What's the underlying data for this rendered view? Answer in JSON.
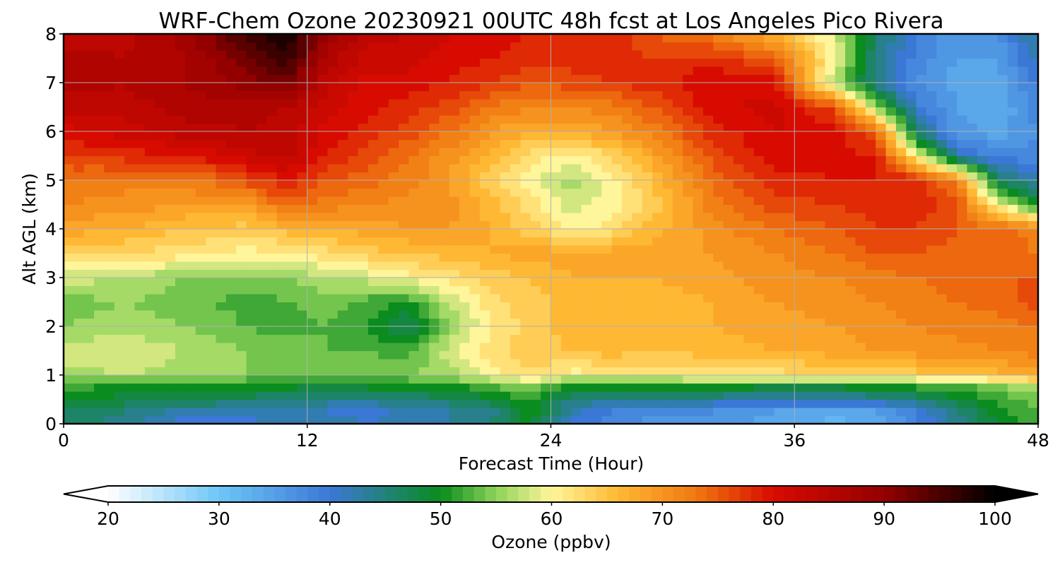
{
  "chart_data": {
    "type": "heatmap",
    "title": "WRF-Chem Ozone  20230921 00UTC 48h fcst at Los Angeles Pico Rivera",
    "xlabel": "Forecast Time (Hour)",
    "ylabel": "Alt AGL (km)",
    "xlim": [
      0,
      48
    ],
    "ylim": [
      0,
      8
    ],
    "xticks": [
      "0",
      "12",
      "24",
      "36",
      "48"
    ],
    "yticks": [
      "0",
      "1",
      "2",
      "3",
      "4",
      "5",
      "6",
      "7",
      "8"
    ],
    "grid": true,
    "x_hours": [
      0,
      3,
      6,
      9,
      11,
      13,
      15,
      17,
      19,
      21,
      23,
      25,
      27,
      29,
      32,
      35,
      38,
      40,
      42,
      44,
      46,
      48
    ],
    "y_km": [
      0,
      0.25,
      0.5,
      0.8,
      1.0,
      1.5,
      2.0,
      2.5,
      3.0,
      3.5,
      4.0,
      4.5,
      5.0,
      5.5,
      6.0,
      6.5,
      7.0,
      7.5,
      8.0
    ],
    "ozone_ppbv": [
      [
        46,
        44,
        40,
        40,
        42,
        43,
        41,
        42,
        43,
        45,
        50,
        41,
        38,
        36,
        36,
        34,
        32,
        33,
        38,
        44,
        49,
        52
      ],
      [
        47,
        45,
        42,
        42,
        42,
        41,
        40,
        42,
        43,
        44,
        50,
        42,
        39,
        38,
        37,
        35,
        34,
        35,
        39,
        45,
        50,
        53
      ],
      [
        49,
        48,
        47,
        46,
        45,
        44,
        44,
        45,
        46,
        48,
        51,
        45,
        44,
        44,
        43,
        42,
        42,
        43,
        45,
        48,
        51,
        54
      ],
      [
        52,
        51,
        51,
        50,
        50,
        49,
        50,
        50,
        51,
        53,
        56,
        50,
        50,
        50,
        51,
        50,
        50,
        51,
        52,
        53,
        55,
        57
      ],
      [
        56,
        57,
        56,
        55,
        54,
        54,
        54,
        55,
        56,
        60,
        63,
        60,
        61,
        61,
        62,
        62,
        63,
        63,
        64,
        65,
        66,
        68
      ],
      [
        58,
        59,
        57,
        55,
        54,
        53,
        53,
        52,
        58,
        62,
        64,
        65,
        66,
        65,
        66,
        67,
        68,
        69,
        70,
        70,
        71,
        72
      ],
      [
        55,
        56,
        55,
        53,
        52,
        53,
        51,
        46,
        55,
        61,
        64,
        66,
        67,
        66,
        67,
        68,
        69,
        70,
        71,
        72,
        72,
        73
      ],
      [
        54,
        55,
        54,
        52,
        53,
        54,
        52,
        51,
        57,
        62,
        64,
        66,
        67,
        66,
        67,
        69,
        70,
        71,
        72,
        73,
        74,
        76
      ],
      [
        58,
        57,
        55,
        54,
        55,
        57,
        58,
        60,
        62,
        64,
        65,
        67,
        67,
        67,
        68,
        70,
        71,
        72,
        73,
        74,
        75,
        75
      ],
      [
        64,
        63,
        62,
        60,
        61,
        62,
        64,
        65,
        66,
        67,
        68,
        68,
        68,
        68,
        69,
        71,
        73,
        75,
        75,
        74,
        74,
        73
      ],
      [
        68,
        67,
        65,
        64,
        66,
        67,
        68,
        69,
        69,
        67,
        64,
        60,
        62,
        66,
        70,
        73,
        75,
        77,
        77,
        75,
        74,
        72
      ],
      [
        71,
        70,
        69,
        69,
        74,
        72,
        71,
        70,
        70,
        66,
        62,
        58,
        60,
        64,
        72,
        76,
        77,
        78,
        78,
        76,
        60,
        50
      ],
      [
        73,
        72,
        72,
        76,
        79,
        75,
        74,
        72,
        69,
        64,
        60,
        56,
        60,
        65,
        74,
        78,
        79,
        79,
        79,
        72,
        46,
        42
      ],
      [
        77,
        78,
        79,
        82,
        84,
        79,
        76,
        73,
        70,
        66,
        62,
        60,
        63,
        68,
        76,
        80,
        80,
        79,
        60,
        42,
        38,
        38
      ],
      [
        80,
        82,
        84,
        85,
        84,
        80,
        78,
        76,
        73,
        69,
        67,
        67,
        69,
        72,
        78,
        81,
        80,
        75,
        45,
        36,
        34,
        37
      ],
      [
        84,
        84,
        86,
        86,
        85,
        82,
        80,
        78,
        76,
        73,
        71,
        71,
        72,
        75,
        80,
        82,
        76,
        56,
        40,
        35,
        33,
        38
      ],
      [
        86,
        85,
        87,
        90,
        92,
        83,
        80,
        80,
        79,
        77,
        75,
        76,
        77,
        78,
        81,
        80,
        56,
        44,
        37,
        34,
        34,
        40
      ],
      [
        86,
        85,
        87,
        92,
        97,
        86,
        82,
        82,
        80,
        79,
        78,
        78,
        78,
        77,
        78,
        74,
        60,
        45,
        38,
        35,
        35,
        42
      ],
      [
        84,
        84,
        88,
        96,
        99,
        89,
        84,
        83,
        81,
        80,
        79,
        79,
        78,
        75,
        72,
        67,
        58,
        46,
        39,
        36,
        37,
        44
      ]
    ],
    "colorbar": {
      "label": "Ozone  (ppbv)",
      "range": [
        20,
        100
      ],
      "ticks": [
        "20",
        "30",
        "40",
        "50",
        "60",
        "70",
        "80",
        "90",
        "100"
      ],
      "extend": "both",
      "colors": [
        "#ffffff",
        "#6ec6f7",
        "#3b78d6",
        "#0a8c1e",
        "#8ed35a",
        "#fff59a",
        "#ffb833",
        "#f07810",
        "#d80b00",
        "#940000",
        "#000000"
      ],
      "color_stops_ppbv": [
        20,
        30,
        40,
        50,
        55,
        60,
        66,
        73,
        80,
        90,
        100
      ]
    }
  }
}
